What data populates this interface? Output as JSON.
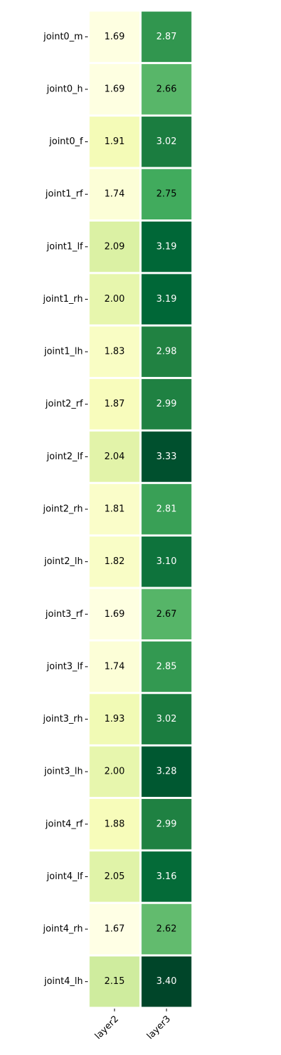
{
  "chart_data": {
    "type": "heatmap",
    "title": "",
    "xlabel": "",
    "ylabel": "",
    "columns": [
      "layer2",
      "layer3"
    ],
    "rows": [
      "joint0_m",
      "joint0_h",
      "joint0_f",
      "joint1_rf",
      "joint1_lf",
      "joint1_rh",
      "joint1_lh",
      "joint2_rf",
      "joint2_lf",
      "joint2_rh",
      "joint2_lh",
      "joint3_rf",
      "joint3_lf",
      "joint3_rh",
      "joint3_lh",
      "joint4_rf",
      "joint4_lf",
      "joint4_rh",
      "joint4_lh"
    ],
    "values": [
      [
        1.69,
        2.87
      ],
      [
        1.69,
        2.66
      ],
      [
        1.91,
        3.02
      ],
      [
        1.74,
        2.75
      ],
      [
        2.09,
        3.19
      ],
      [
        2.0,
        3.19
      ],
      [
        1.83,
        2.98
      ],
      [
        1.87,
        2.99
      ],
      [
        2.04,
        3.33
      ],
      [
        1.81,
        2.81
      ],
      [
        1.82,
        3.1
      ],
      [
        1.69,
        2.67
      ],
      [
        1.74,
        2.85
      ],
      [
        1.93,
        3.02
      ],
      [
        2.0,
        3.28
      ],
      [
        1.88,
        2.99
      ],
      [
        2.05,
        3.16
      ],
      [
        1.67,
        2.62
      ],
      [
        2.15,
        3.4
      ]
    ],
    "value_format": "0.00",
    "colormap": "YlGn",
    "color_range": [
      1.67,
      3.4
    ],
    "colorbar": false,
    "grid": false,
    "cell_separator_color": "#ffffff"
  }
}
